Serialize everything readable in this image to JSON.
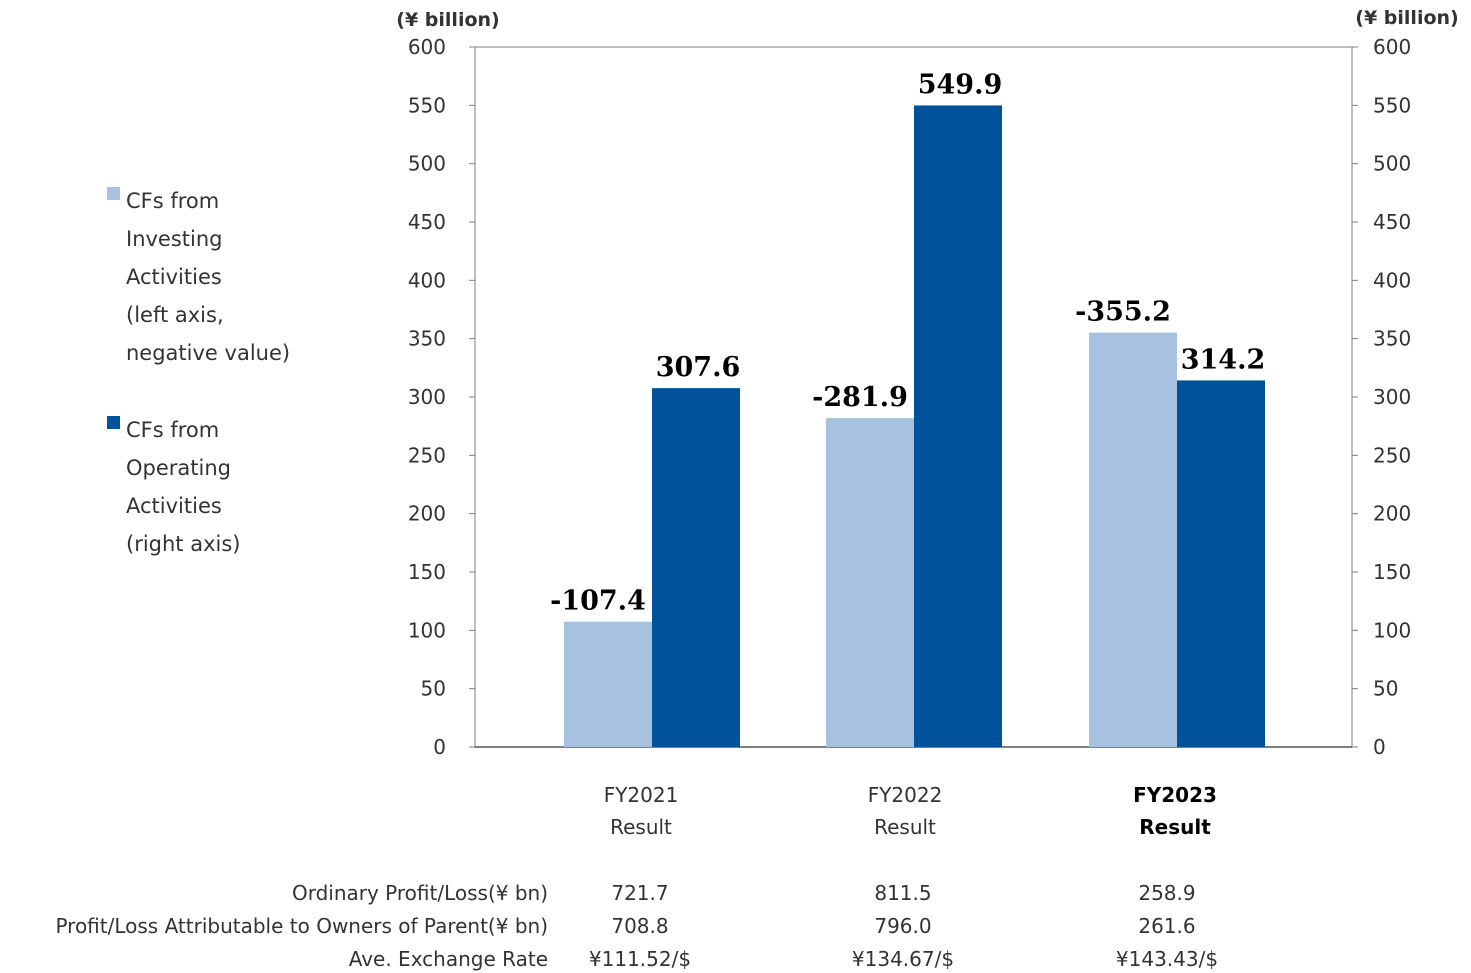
{
  "chart_data": {
    "type": "bar",
    "categories": [
      {
        "line1": "FY2021",
        "line2": "Result",
        "emphasis": false
      },
      {
        "line1": "FY2022",
        "line2": "Result",
        "emphasis": false
      },
      {
        "line1": "FY2023",
        "line2": "Result",
        "emphasis": true
      }
    ],
    "series": [
      {
        "legend_lines": [
          "CFs from",
          "Investing",
          "Activities",
          "(left axis,",
          "negative value)"
        ],
        "values": [
          107.4,
          281.9,
          355.2
        ],
        "value_labels": [
          "-107.4",
          "-281.9",
          "-355.2"
        ],
        "color": "#a6c2e0",
        "axis": "left"
      },
      {
        "legend_lines": [
          "CFs from",
          "Operating",
          "Activities",
          "(right axis)"
        ],
        "values": [
          307.6,
          549.9,
          314.2
        ],
        "value_labels": [
          "307.6",
          "549.9",
          "314.2"
        ],
        "color": "#00529b",
        "axis": "right"
      }
    ],
    "ylim": [
      0,
      600
    ],
    "yticks": [
      0,
      50,
      100,
      150,
      200,
      250,
      300,
      350,
      400,
      450,
      500,
      550,
      600
    ],
    "left_axis_unit": "(¥ billion)",
    "right_axis_unit": "(¥ billion)",
    "legend_placement": "left",
    "grid": false
  },
  "table": {
    "rows": [
      {
        "label": "Ordinary Profit/Loss(¥ bn)",
        "values": [
          "721.7",
          "811.5",
          "258.9"
        ]
      },
      {
        "label": "Profit/Loss Attributable to Owners of Parent(¥  bn)",
        "values": [
          "708.8",
          "796.0",
          "261.6"
        ]
      },
      {
        "label": "Ave.  Exchange Rate",
        "values": [
          "¥111.52/$",
          "¥134.67/$",
          "¥143.43/$"
        ]
      }
    ]
  }
}
